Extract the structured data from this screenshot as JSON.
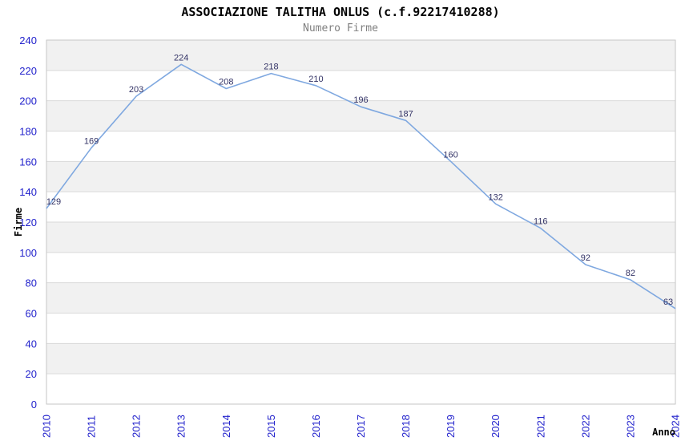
{
  "chart_data": {
    "type": "line",
    "title": "ASSOCIAZIONE TALITHA ONLUS (c.f.92217410288)",
    "subtitle": "Numero Firme",
    "xlabel": "Anno",
    "ylabel": "Firme",
    "x": [
      "2010",
      "2011",
      "2012",
      "2013",
      "2014",
      "2015",
      "2016",
      "2017",
      "2018",
      "2019",
      "2020",
      "2021",
      "2022",
      "2023",
      "2024"
    ],
    "series": [
      {
        "name": "Numero Firme",
        "values": [
          129,
          169,
          203,
          224,
          208,
          218,
          210,
          196,
          187,
          160,
          132,
          116,
          92,
          82,
          63
        ]
      }
    ],
    "ylim": [
      0,
      240
    ],
    "ytick_step": 20,
    "grid": true,
    "legend_position": "none",
    "colors": {
      "line": "#7FA8E0",
      "data_label": "#333366",
      "tick_label": "#2222CC",
      "band": "#F1F1F1",
      "gridline": "#D9D9D9",
      "border": "#C6C6C6",
      "title": "#000000",
      "subtitle": "#808080",
      "axis_label": "#000000",
      "background": "#FFFFFF"
    }
  }
}
